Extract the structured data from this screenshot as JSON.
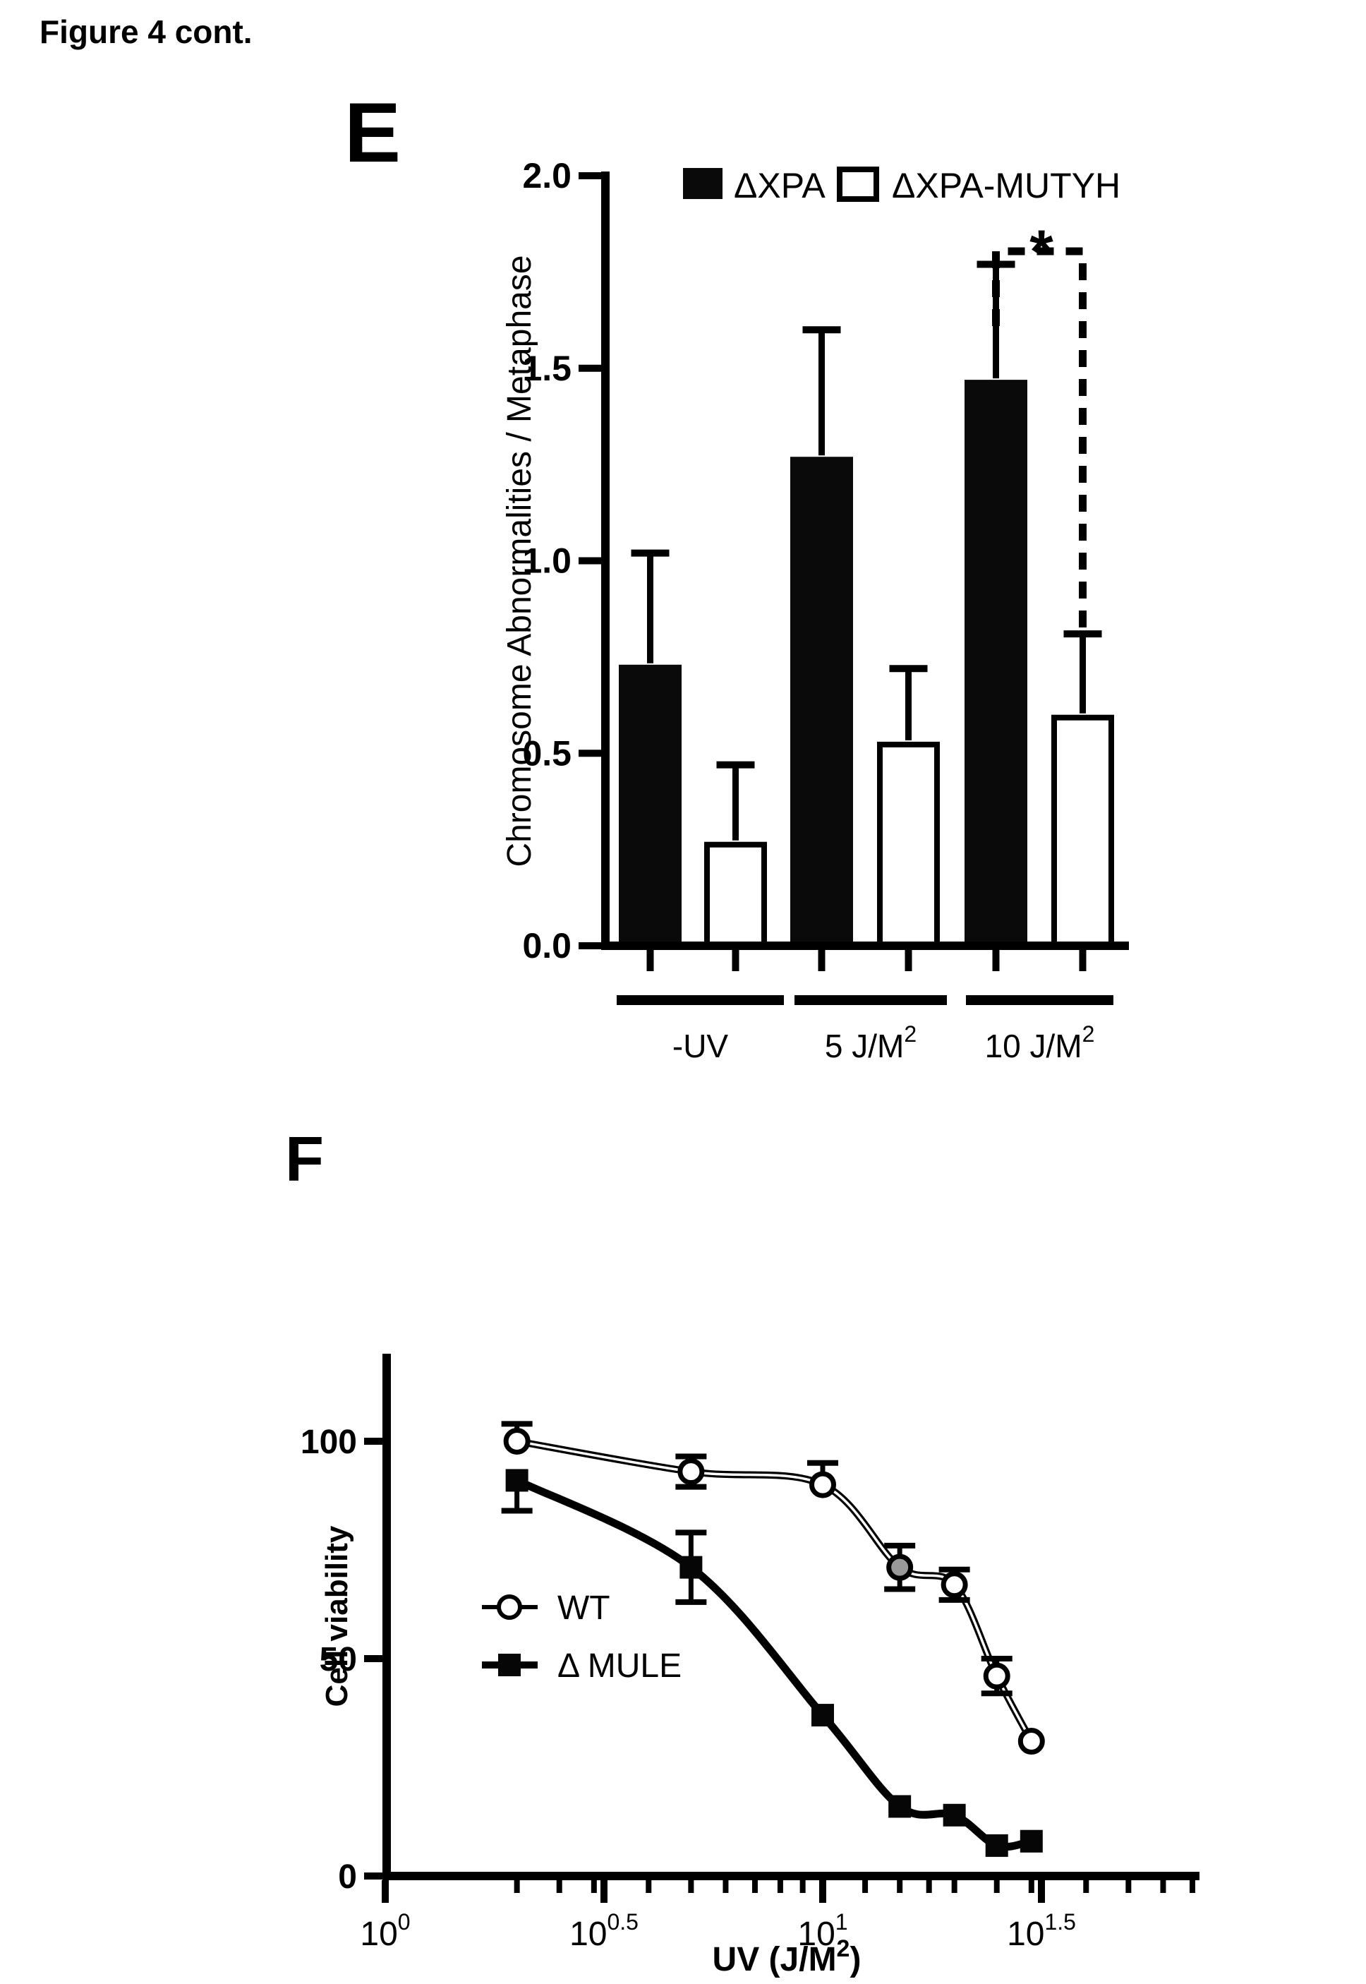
{
  "page": {
    "title": "Figure 4 cont."
  },
  "panel_e": {
    "letter": "E"
  },
  "panel_f": {
    "letter": "F"
  },
  "chart_data": [
    {
      "id": "E",
      "type": "bar",
      "title": "",
      "ylabel": "Chromosome Abnormalities / Metaphase",
      "xlabel": "",
      "ylim": [
        0.0,
        2.0
      ],
      "grid": false,
      "legend_position": "top",
      "yticks": {
        "values": [
          0.0,
          0.5,
          1.0,
          1.5,
          2.0
        ],
        "labels": [
          "0.0",
          "0.5",
          "1.0",
          "1.5",
          "2.0"
        ]
      },
      "categories": [
        {
          "base": "-UV",
          "sup": ""
        },
        {
          "base": "5 J/M",
          "sup": "2"
        },
        {
          "base": "10 J/M",
          "sup": "2"
        }
      ],
      "series": [
        {
          "name": "ΔXPA",
          "swatch": "filled",
          "color": "#0a0a0a",
          "values": [
            0.73,
            1.27,
            1.47
          ],
          "errors": [
            0.29,
            0.33,
            0.3
          ]
        },
        {
          "name": "ΔXPA-MUTYH",
          "swatch": "open",
          "color": "#ffffff",
          "values": [
            0.27,
            0.53,
            0.6
          ],
          "errors": [
            0.2,
            0.19,
            0.21
          ]
        }
      ],
      "significance": {
        "label": "*",
        "between": [
          "ΔXPA 10 J/M2",
          "ΔXPA-MUTYH 10 J/M2"
        ],
        "style": "dashed-bracket"
      }
    },
    {
      "id": "F",
      "type": "line",
      "title": "",
      "ylabel": "Cell viability",
      "xlabel_parts": {
        "pre": "UV  (J/M",
        "sup": "2",
        "post": ")"
      },
      "xscale": "log",
      "ylim": [
        0,
        100
      ],
      "xlim": [
        1,
        70
      ],
      "grid": false,
      "legend_position": "middle-left",
      "yticks": {
        "values": [
          0,
          50,
          100
        ],
        "labels": [
          "0",
          "50",
          "100"
        ]
      },
      "xticks": [
        {
          "value": 1,
          "base": "10",
          "sup": "0"
        },
        {
          "value": 3.1623,
          "base": "10",
          "sup": "0.5"
        },
        {
          "value": 10,
          "base": "10",
          "sup": "1"
        },
        {
          "value": 31.623,
          "base": "10",
          "sup": "1.5"
        }
      ],
      "series": [
        {
          "name": "WT",
          "marker": "open-circle",
          "line": "double",
          "x": [
            2,
            5,
            10,
            15,
            20,
            25,
            30
          ],
          "y": [
            100,
            93,
            90,
            71,
            67,
            46,
            31
          ],
          "err_up": [
            4,
            3.5,
            5,
            5,
            3.5,
            4,
            0
          ],
          "err_dn": [
            0,
            3.5,
            0,
            5,
            3.5,
            4,
            0
          ]
        },
        {
          "name": "Δ MULE",
          "marker": "filled-square",
          "line": "thick",
          "x": [
            2,
            5,
            10,
            15,
            20,
            25,
            30
          ],
          "y": [
            91,
            71,
            37,
            16,
            14,
            7,
            8
          ],
          "err_up": [
            0,
            8,
            0,
            0,
            0,
            0,
            0
          ],
          "err_dn": [
            7,
            8,
            0,
            0,
            0,
            0,
            0
          ]
        }
      ]
    }
  ]
}
